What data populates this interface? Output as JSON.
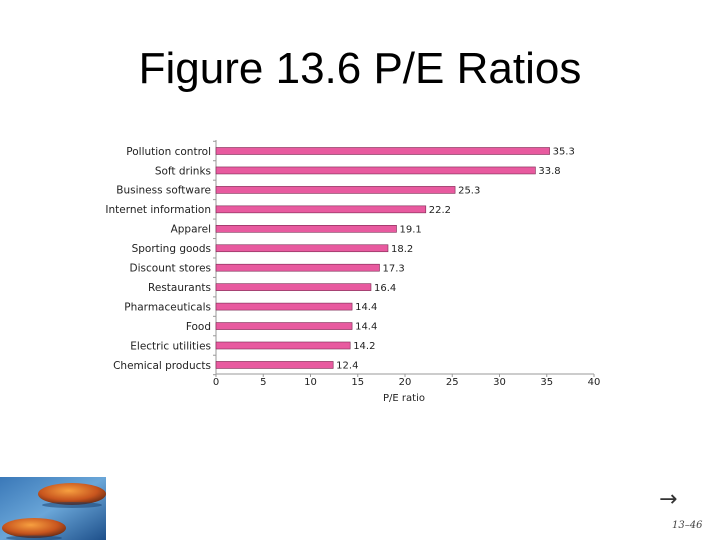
{
  "slide": {
    "title": "Figure 13.6 P/E Ratios",
    "slide_number": "13–46",
    "nav_arrow": "→"
  },
  "chart_data": {
    "type": "bar",
    "orientation": "horizontal",
    "categories": [
      "Pollution control",
      "Soft drinks",
      "Business software",
      "Internet information",
      "Apparel",
      "Sporting goods",
      "Discount stores",
      "Restaurants",
      "Pharmaceuticals",
      "Food",
      "Electric utilities",
      "Chemical products"
    ],
    "values": [
      35.3,
      33.8,
      25.3,
      22.2,
      19.1,
      18.2,
      17.3,
      16.4,
      14.4,
      14.4,
      14.2,
      12.4
    ],
    "value_labels": [
      "35.3",
      "33.8",
      "25.3",
      "22.2",
      "19.1",
      "18.2",
      "17.3",
      "16.4",
      "14.4",
      "14.4",
      "14.2",
      "12.4"
    ],
    "xticks": [
      0,
      5,
      10,
      15,
      20,
      25,
      30,
      35,
      40
    ],
    "xlim": [
      0,
      40
    ],
    "xlabel": "P/E ratio",
    "ylabel": "",
    "grid": false,
    "bar_color": "#e85a9f",
    "bar_edge_color": "#7a2a52"
  }
}
